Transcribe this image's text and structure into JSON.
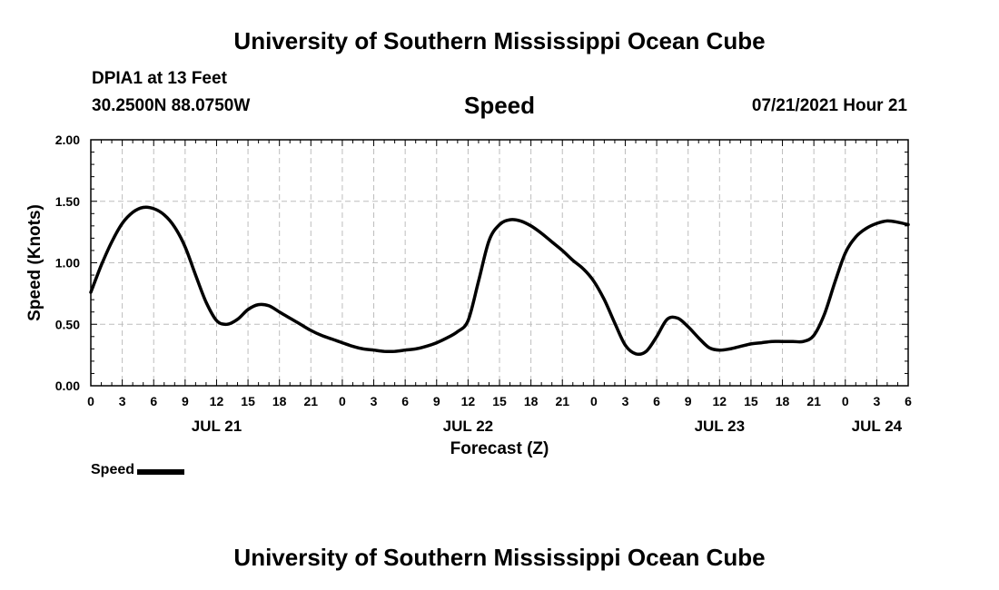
{
  "header": {
    "title": "University of Southern Mississippi Ocean Cube",
    "station": "DPIA1 at 13 Feet",
    "coords": "30.2500N  88.0750W",
    "parameter": "Speed",
    "datetime": "07/21/2021 Hour 21"
  },
  "footer": {
    "title": "University of Southern Mississippi Ocean Cube"
  },
  "chart_data": {
    "type": "line",
    "title": "Speed",
    "ylabel": "Speed (Knots)",
    "xlabel": "Forecast (Z)",
    "ylim": [
      0,
      2
    ],
    "xlim_hours": [
      0,
      78
    ],
    "y_ticks": [
      "0.00",
      "0.50",
      "1.00",
      "1.50",
      "2.00"
    ],
    "y_tick_values": [
      0,
      0.5,
      1.0,
      1.5,
      2.0
    ],
    "x_tick_labels": [
      "0",
      "3",
      "6",
      "9",
      "12",
      "15",
      "18",
      "21",
      "0",
      "3",
      "6",
      "9",
      "12",
      "15",
      "18",
      "21",
      "0",
      "3",
      "6",
      "9",
      "12",
      "15",
      "18",
      "21",
      "0",
      "3",
      "6"
    ],
    "date_labels": [
      {
        "label": "JUL 21",
        "hour": 12
      },
      {
        "label": "JUL 22",
        "hour": 36
      },
      {
        "label": "JUL 23",
        "hour": 60
      },
      {
        "label": "JUL 24",
        "hour": 75
      }
    ],
    "grid": true,
    "series": [
      {
        "name": "Speed",
        "color": "#000000",
        "x": [
          0,
          1,
          2,
          3,
          4,
          5,
          6,
          7,
          8,
          9,
          10,
          11,
          12,
          13,
          14,
          15,
          16,
          17,
          18,
          19,
          20,
          21,
          22,
          23,
          24,
          25,
          26,
          27,
          28,
          29,
          30,
          31,
          32,
          33,
          34,
          35,
          36,
          37,
          38,
          39,
          40,
          41,
          42,
          43,
          44,
          45,
          46,
          47,
          48,
          49,
          50,
          51,
          52,
          53,
          54,
          55,
          56,
          57,
          58,
          59,
          60,
          61,
          62,
          63,
          64,
          65,
          66,
          67,
          68,
          69,
          70,
          71,
          72,
          73,
          74,
          75,
          76,
          77,
          78
        ],
        "values": [
          0.76,
          0.98,
          1.17,
          1.32,
          1.41,
          1.45,
          1.44,
          1.39,
          1.29,
          1.13,
          0.9,
          0.68,
          0.53,
          0.5,
          0.54,
          0.62,
          0.66,
          0.65,
          0.6,
          0.55,
          0.5,
          0.45,
          0.41,
          0.38,
          0.35,
          0.32,
          0.3,
          0.29,
          0.28,
          0.28,
          0.29,
          0.3,
          0.32,
          0.35,
          0.39,
          0.44,
          0.53,
          0.85,
          1.18,
          1.31,
          1.35,
          1.34,
          1.3,
          1.24,
          1.17,
          1.1,
          1.02,
          0.95,
          0.85,
          0.7,
          0.51,
          0.33,
          0.26,
          0.28,
          0.4,
          0.54,
          0.55,
          0.48,
          0.39,
          0.31,
          0.29,
          0.3,
          0.32,
          0.34,
          0.35,
          0.36,
          0.36,
          0.36,
          0.36,
          0.41,
          0.58,
          0.84,
          1.08,
          1.21,
          1.28,
          1.32,
          1.34,
          1.33,
          1.31
        ]
      }
    ],
    "legend": [
      {
        "label": "Speed",
        "color": "#000000"
      }
    ]
  }
}
